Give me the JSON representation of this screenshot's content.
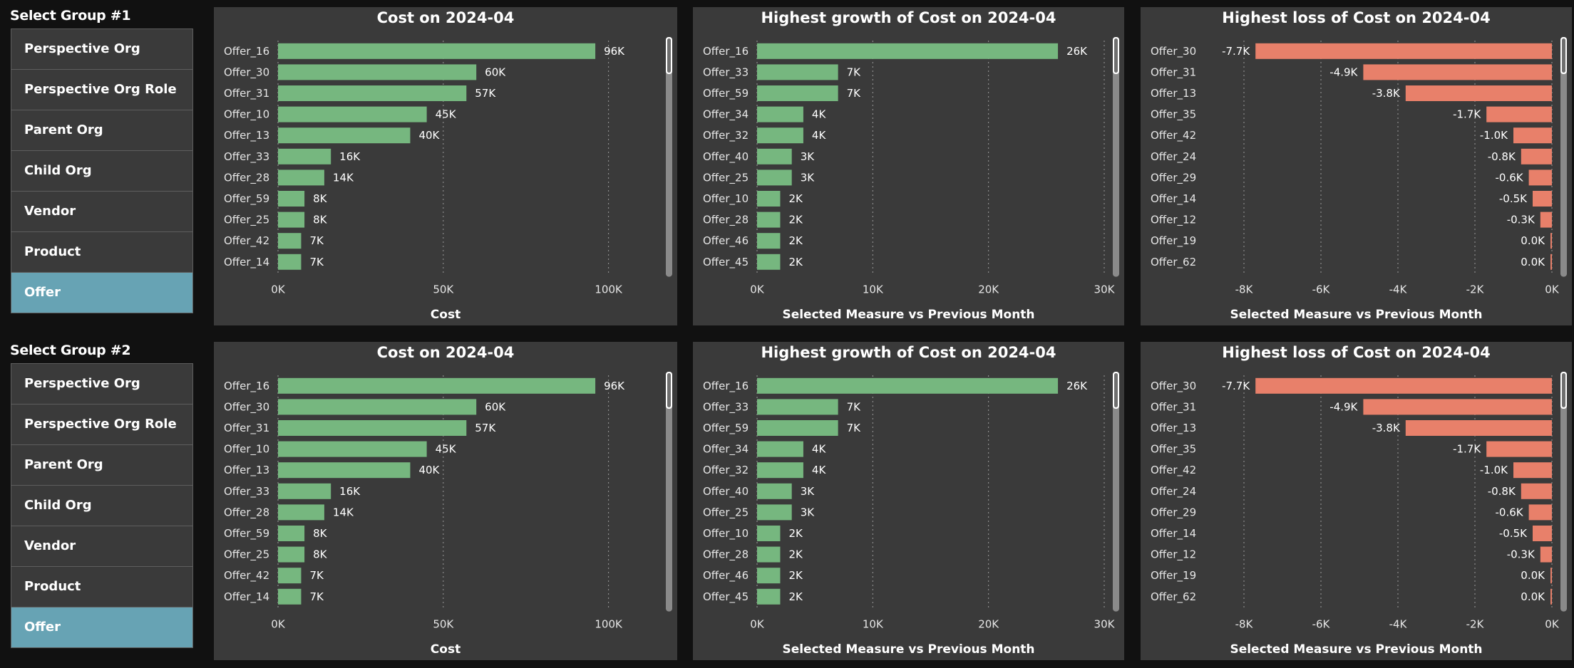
{
  "groups": [
    {
      "label": "Select Group #1",
      "slicer_items": [
        "Perspective Org",
        "Perspective Org Role",
        "Parent Org",
        "Child Org",
        "Vendor",
        "Product",
        "Offer"
      ],
      "selected": "Offer"
    },
    {
      "label": "Select Group #2",
      "slicer_items": [
        "Perspective Org",
        "Perspective Org Role",
        "Parent Org",
        "Child Org",
        "Vendor",
        "Product",
        "Offer"
      ],
      "selected": "Offer"
    }
  ],
  "colors": {
    "positive_bar": "#76b77f",
    "negative_bar": "#e8806a",
    "panel_bg": "#3a3a3a",
    "slicer_selected": "#67a3b4"
  },
  "chart_data": [
    {
      "type": "bar",
      "orientation": "horizontal",
      "title": "Cost on 2024-04",
      "xlabel": "Cost",
      "categories": [
        "Offer_16",
        "Offer_30",
        "Offer_31",
        "Offer_10",
        "Offer_13",
        "Offer_33",
        "Offer_28",
        "Offer_59",
        "Offer_25",
        "Offer_42",
        "Offer_14"
      ],
      "values": [
        96000,
        60000,
        57000,
        45000,
        40000,
        16000,
        14000,
        8000,
        8000,
        7000,
        7000
      ],
      "data_labels": [
        "96K",
        "60K",
        "57K",
        "45K",
        "40K",
        "16K",
        "14K",
        "8K",
        "8K",
        "7K",
        "7K"
      ],
      "xlim": [
        0,
        110000
      ],
      "xticks": [
        0,
        50000,
        100000
      ],
      "xtick_labels": [
        "0K",
        "50K",
        "100K"
      ],
      "grid": true,
      "color": "#76b77f"
    },
    {
      "type": "bar",
      "orientation": "horizontal",
      "title": "Highest growth of Cost on 2024-04",
      "xlabel": "Selected Measure vs Previous Month",
      "categories": [
        "Offer_16",
        "Offer_33",
        "Offer_59",
        "Offer_34",
        "Offer_32",
        "Offer_40",
        "Offer_25",
        "Offer_10",
        "Offer_28",
        "Offer_46",
        "Offer_45"
      ],
      "values": [
        26000,
        7000,
        7000,
        4000,
        4000,
        3000,
        3000,
        2000,
        2000,
        2000,
        2000
      ],
      "data_labels": [
        "26K",
        "7K",
        "7K",
        "4K",
        "4K",
        "3K",
        "3K",
        "2K",
        "2K",
        "2K",
        "2K"
      ],
      "xlim": [
        0,
        30000
      ],
      "xticks": [
        0,
        10000,
        20000,
        30000
      ],
      "xtick_labels": [
        "0K",
        "10K",
        "20K",
        "30K"
      ],
      "grid": true,
      "color": "#76b77f"
    },
    {
      "type": "bar",
      "orientation": "horizontal",
      "title": "Highest loss of Cost on 2024-04",
      "xlabel": "Selected Measure vs Previous Month",
      "categories": [
        "Offer_30",
        "Offer_31",
        "Offer_13",
        "Offer_35",
        "Offer_42",
        "Offer_24",
        "Offer_29",
        "Offer_14",
        "Offer_12",
        "Offer_19",
        "Offer_62"
      ],
      "values": [
        -7700,
        -4900,
        -3800,
        -1700,
        -1000,
        -800,
        -600,
        -500,
        -300,
        0,
        0
      ],
      "data_labels": [
        "-7.7K",
        "-4.9K",
        "-3.8K",
        "-1.7K",
        "-1.0K",
        "-0.8K",
        "-0.6K",
        "-0.5K",
        "-0.3K",
        "0.0K",
        "0.0K"
      ],
      "xlim": [
        -8000,
        0
      ],
      "xticks": [
        -8000,
        -6000,
        -4000,
        -2000,
        0
      ],
      "xtick_labels": [
        "-8K",
        "-6K",
        "-4K",
        "-2K",
        "0K"
      ],
      "grid": true,
      "color": "#e8806a"
    },
    {
      "type": "bar",
      "orientation": "horizontal",
      "title": "Cost on 2024-04",
      "xlabel": "Cost",
      "categories": [
        "Offer_16",
        "Offer_30",
        "Offer_31",
        "Offer_10",
        "Offer_13",
        "Offer_33",
        "Offer_28",
        "Offer_59",
        "Offer_25",
        "Offer_42",
        "Offer_14"
      ],
      "values": [
        96000,
        60000,
        57000,
        45000,
        40000,
        16000,
        14000,
        8000,
        8000,
        7000,
        7000
      ],
      "data_labels": [
        "96K",
        "60K",
        "57K",
        "45K",
        "40K",
        "16K",
        "14K",
        "8K",
        "8K",
        "7K",
        "7K"
      ],
      "xlim": [
        0,
        110000
      ],
      "xticks": [
        0,
        50000,
        100000
      ],
      "xtick_labels": [
        "0K",
        "50K",
        "100K"
      ],
      "grid": true,
      "color": "#76b77f"
    },
    {
      "type": "bar",
      "orientation": "horizontal",
      "title": "Highest growth of Cost on 2024-04",
      "xlabel": "Selected Measure vs Previous Month",
      "categories": [
        "Offer_16",
        "Offer_33",
        "Offer_59",
        "Offer_34",
        "Offer_32",
        "Offer_40",
        "Offer_25",
        "Offer_10",
        "Offer_28",
        "Offer_46",
        "Offer_45"
      ],
      "values": [
        26000,
        7000,
        7000,
        4000,
        4000,
        3000,
        3000,
        2000,
        2000,
        2000,
        2000
      ],
      "data_labels": [
        "26K",
        "7K",
        "7K",
        "4K",
        "4K",
        "3K",
        "3K",
        "2K",
        "2K",
        "2K",
        "2K"
      ],
      "xlim": [
        0,
        30000
      ],
      "xticks": [
        0,
        10000,
        20000,
        30000
      ],
      "xtick_labels": [
        "0K",
        "10K",
        "20K",
        "30K"
      ],
      "grid": true,
      "color": "#76b77f"
    },
    {
      "type": "bar",
      "orientation": "horizontal",
      "title": "Highest loss of Cost on 2024-04",
      "xlabel": "Selected Measure vs Previous Month",
      "categories": [
        "Offer_30",
        "Offer_31",
        "Offer_13",
        "Offer_35",
        "Offer_42",
        "Offer_24",
        "Offer_29",
        "Offer_14",
        "Offer_12",
        "Offer_19",
        "Offer_62"
      ],
      "values": [
        -7700,
        -4900,
        -3800,
        -1700,
        -1000,
        -800,
        -600,
        -500,
        -300,
        0,
        0
      ],
      "data_labels": [
        "-7.7K",
        "-4.9K",
        "-3.8K",
        "-1.7K",
        "-1.0K",
        "-0.8K",
        "-0.6K",
        "-0.5K",
        "-0.3K",
        "0.0K",
        "0.0K"
      ],
      "xlim": [
        -8000,
        0
      ],
      "xticks": [
        -8000,
        -6000,
        -4000,
        -2000,
        0
      ],
      "xtick_labels": [
        "-8K",
        "-6K",
        "-4K",
        "-2K",
        "0K"
      ],
      "grid": true,
      "color": "#e8806a"
    }
  ]
}
